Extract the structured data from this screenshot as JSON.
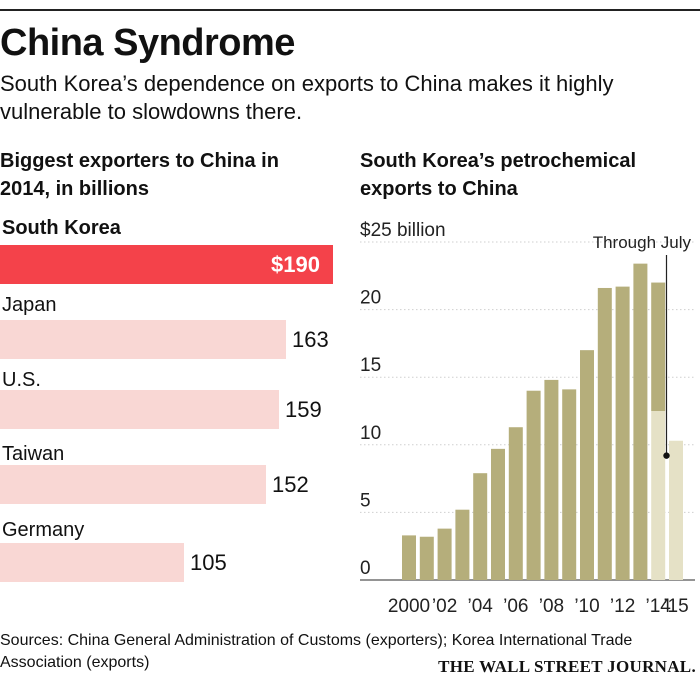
{
  "header": {
    "title": "China Syndrome",
    "subtitle": "South Korea’s dependence on exports to China makes it highly vulnerable to slowdowns there."
  },
  "colors": {
    "highlight_bar": "#f4424a",
    "light_bar": "#f9d7d4",
    "column": "#b5ae7b",
    "column_partial": "#e5e1c6"
  },
  "chart_data": [
    {
      "type": "bar",
      "orientation": "horizontal",
      "title": "Biggest exporters to China in 2014, in billions",
      "categories": [
        "South Korea",
        "Japan",
        "U.S.",
        "Taiwan",
        "Germany"
      ],
      "values": [
        190,
        163,
        159,
        152,
        105
      ],
      "value_labels": [
        "$190",
        "163",
        "159",
        "152",
        "105"
      ],
      "highlight": "South Korea"
    },
    {
      "type": "bar",
      "title": "South Korea’s petrochemical exports to China",
      "x": [
        2000,
        2001,
        2002,
        2003,
        2004,
        2005,
        2006,
        2007,
        2008,
        2009,
        2010,
        2011,
        2012,
        2013,
        2014,
        2015
      ],
      "values": [
        3.3,
        3.2,
        3.8,
        5.2,
        7.9,
        9.7,
        11.3,
        14.0,
        14.8,
        14.1,
        17.0,
        21.6,
        21.7,
        23.4,
        22.0,
        10.3
      ],
      "partial_year_values": {
        "2014": 12.5,
        "2015": 10.3
      },
      "ylim": [
        0,
        25
      ],
      "yticks": [
        0,
        5,
        10,
        15,
        20,
        25
      ],
      "ytick_labels": [
        "0",
        "5",
        "10",
        "15",
        "20",
        "$25 billion"
      ],
      "xtick_labels": [
        "2000",
        "’02",
        "’04",
        "’06",
        "’08",
        "’10",
        "’12",
        "’14",
        "’15"
      ],
      "xtick_years": [
        2000,
        2002,
        2004,
        2006,
        2008,
        2010,
        2012,
        2014,
        2015
      ],
      "annotation": "Through July"
    }
  ],
  "footer": {
    "sources": "Sources: China General Administration of Customs (exporters); Korea International Trade Association (exports)",
    "brand": "THE WALL STREET JOURNAL."
  }
}
